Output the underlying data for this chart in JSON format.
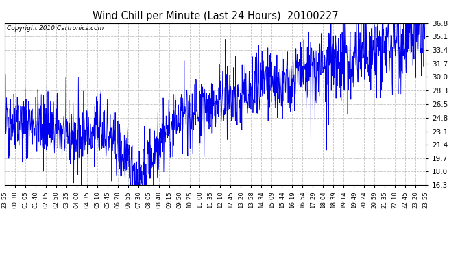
{
  "title": "Wind Chill per Minute (Last 24 Hours)  20100227",
  "copyright": "Copyright 2010 Cartronics.com",
  "line_color": "#0000EE",
  "bg_color": "#ffffff",
  "plot_bg_color": "#ffffff",
  "grid_color": "#bbbbbb",
  "ylim": [
    16.3,
    36.8
  ],
  "yticks": [
    16.3,
    18.0,
    19.7,
    21.4,
    23.1,
    24.8,
    26.5,
    28.3,
    30.0,
    31.7,
    33.4,
    35.1,
    36.8
  ],
  "x_tick_labels": [
    "23:55",
    "00:30",
    "01:05",
    "01:40",
    "02:15",
    "02:50",
    "03:25",
    "04:00",
    "04:35",
    "05:10",
    "05:45",
    "06:20",
    "06:55",
    "07:30",
    "08:05",
    "08:40",
    "09:15",
    "09:50",
    "10:25",
    "11:00",
    "11:35",
    "12:10",
    "12:45",
    "13:20",
    "13:58",
    "14:34",
    "15:09",
    "15:44",
    "16:19",
    "16:54",
    "17:29",
    "18:04",
    "18:39",
    "19:14",
    "19:49",
    "20:24",
    "20:59",
    "21:35",
    "22:10",
    "22:45",
    "23:20",
    "23:55"
  ],
  "n_minutes": 1441,
  "seed": 42
}
